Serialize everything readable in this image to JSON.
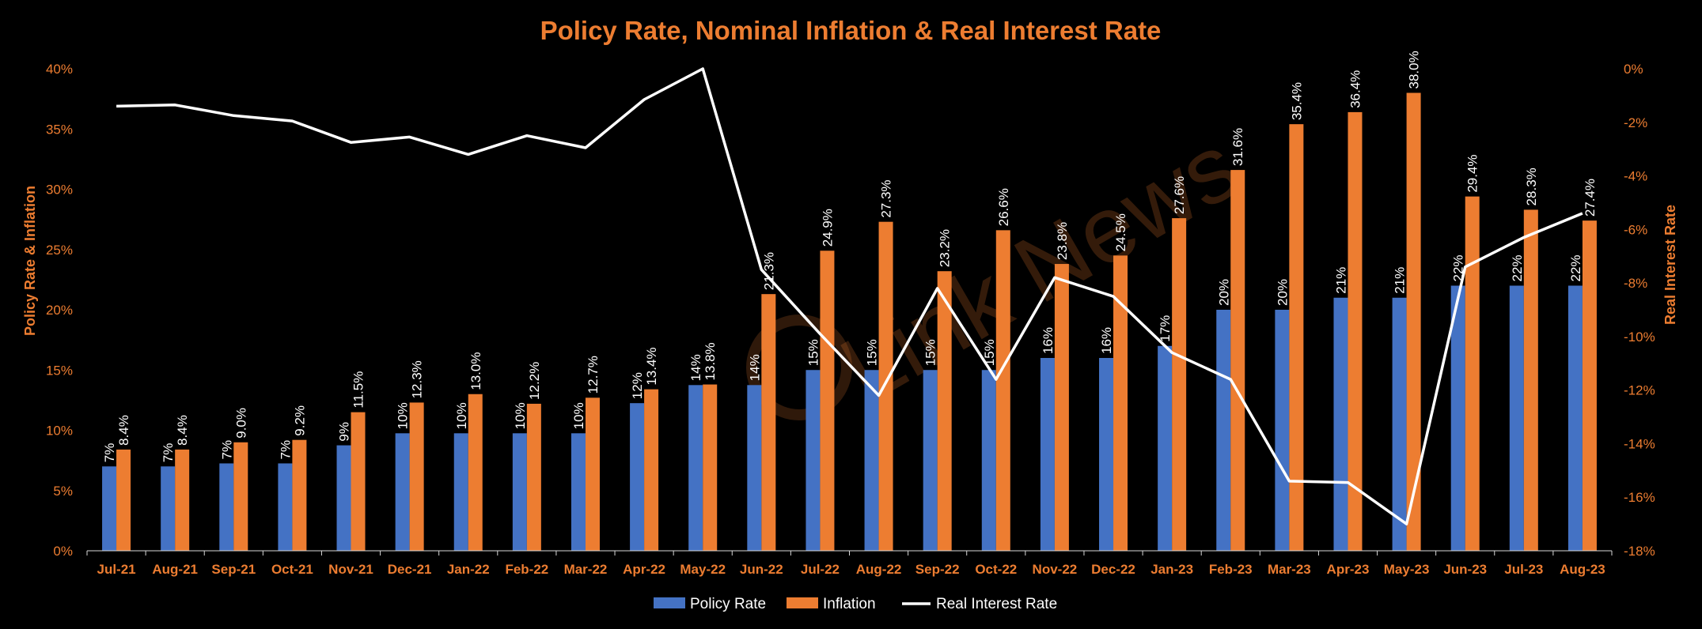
{
  "chart_data": {
    "type": "bar",
    "title": "Policy Rate, Nominal Inflation & Real Interest Rate",
    "ylabel": "Policy Rate & Inflation",
    "y2label": "Real Interest Rate",
    "ylim": [
      0,
      40
    ],
    "y2lim": [
      -18,
      0
    ],
    "yticks": [
      "0%",
      "5%",
      "10%",
      "15%",
      "20%",
      "25%",
      "30%",
      "35%",
      "40%"
    ],
    "y2ticks": [
      "-18%",
      "-16%",
      "-14%",
      "-12%",
      "-10%",
      "-8%",
      "-6%",
      "-4%",
      "-2%",
      "0%"
    ],
    "categories": [
      "Jul-21",
      "Aug-21",
      "Sep-21",
      "Oct-21",
      "Nov-21",
      "Dec-21",
      "Jan-22",
      "Feb-22",
      "Mar-22",
      "Apr-22",
      "May-22",
      "Jun-22",
      "Jul-22",
      "Aug-22",
      "Sep-22",
      "Oct-22",
      "Nov-22",
      "Dec-22",
      "Jan-23",
      "Feb-23",
      "Mar-23",
      "Apr-23",
      "May-23",
      "Jun-23",
      "Jul-23",
      "Aug-23"
    ],
    "series": [
      {
        "name": "Policy Rate",
        "type": "bar",
        "color": "#4472C4",
        "axis": "left",
        "values": [
          7,
          7,
          7.25,
          7.25,
          8.75,
          9.75,
          9.75,
          9.75,
          9.75,
          12.25,
          13.75,
          13.75,
          15,
          15,
          15,
          15,
          16,
          16,
          17,
          20,
          20,
          21,
          21,
          22,
          22,
          22
        ],
        "labels": [
          "7%",
          "7%",
          "7%",
          "7%",
          "9%",
          "10%",
          "10%",
          "10%",
          "10%",
          "12%",
          "14%",
          "14%",
          "15%",
          "15%",
          "15%",
          "15%",
          "16%",
          "16%",
          "17%",
          "20%",
          "20%",
          "21%",
          "21%",
          "22%",
          "22%",
          "22%"
        ]
      },
      {
        "name": "Inflation",
        "type": "bar",
        "color": "#ED7D31",
        "axis": "left",
        "values": [
          8.4,
          8.4,
          9.0,
          9.2,
          11.5,
          12.3,
          13.0,
          12.2,
          12.7,
          13.4,
          13.8,
          21.3,
          24.9,
          27.3,
          23.2,
          26.6,
          23.8,
          24.5,
          27.6,
          31.6,
          35.4,
          36.4,
          38.0,
          29.4,
          28.3,
          27.4
        ],
        "labels": [
          "8.4%",
          "8.4%",
          "9.0%",
          "9.2%",
          "11.5%",
          "12.3%",
          "13.0%",
          "12.2%",
          "12.7%",
          "13.4%",
          "13.8%",
          "21.3%",
          "24.9%",
          "27.3%",
          "23.2%",
          "26.6%",
          "23.8%",
          "24.5%",
          "27.6%",
          "31.6%",
          "35.4%",
          "36.4%",
          "38.0%",
          "29.4%",
          "28.3%",
          "27.4%"
        ]
      },
      {
        "name": "Real Interest Rate",
        "type": "line",
        "color": "#FFFFFF",
        "axis": "right",
        "values": [
          -1.4,
          -1.35,
          -1.75,
          -1.95,
          -2.75,
          -2.55,
          -3.2,
          -2.5,
          -2.95,
          -1.15,
          0,
          -7.5,
          -9.9,
          -12.2,
          -8.2,
          -11.6,
          -7.8,
          -8.5,
          -10.6,
          -11.6,
          -15.4,
          -15.45,
          -17.0,
          -7.4,
          -6.3,
          -5.4
        ]
      }
    ],
    "legend_position": "bottom",
    "grid": false
  },
  "watermark": "Link News"
}
